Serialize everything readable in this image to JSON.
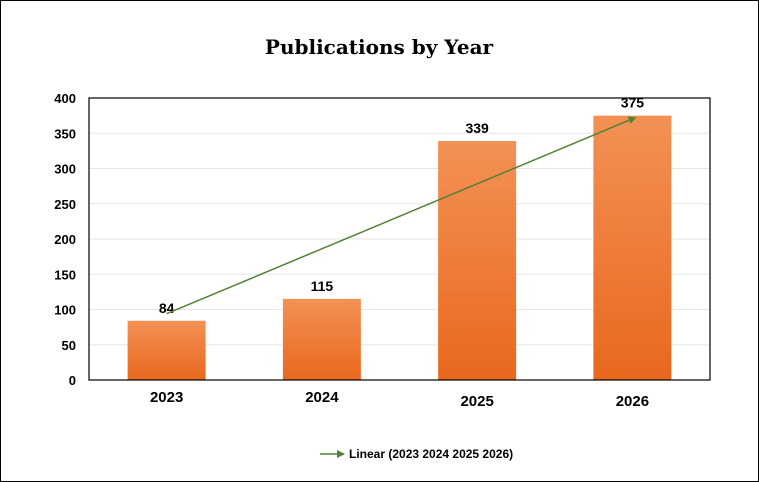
{
  "chart_data": {
    "type": "bar",
    "title": "Publications by Year",
    "categories": [
      "2023",
      "2024",
      "2025",
      "2026"
    ],
    "values": [
      84,
      115,
      339,
      375
    ],
    "ylim": [
      0,
      400
    ],
    "yticks": [
      0,
      50,
      100,
      150,
      200,
      250,
      300,
      350,
      400
    ],
    "xlabel": "",
    "ylabel": "",
    "grid": true,
    "bar_color_top": "#F39155",
    "bar_color_bottom": "#E8681D",
    "trendline": {
      "type": "linear",
      "label": "Linear (2023 2024 2025 2026)",
      "color": "#548235",
      "start": {
        "x": "2023",
        "y": 94
      },
      "end": {
        "x": "2026",
        "y": 375
      }
    },
    "legend_position": "bottom"
  }
}
